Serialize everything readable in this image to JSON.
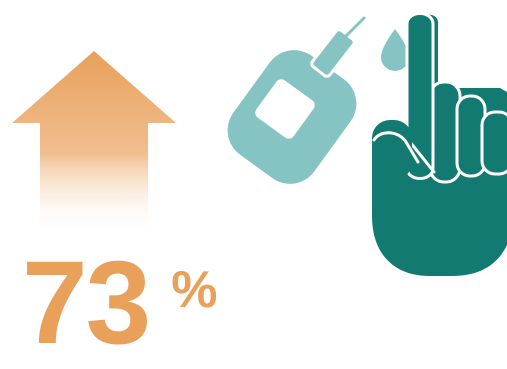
{
  "stat": {
    "value": "73",
    "unit": "%"
  },
  "colors": {
    "accent_orange": "#e8a05a",
    "meter_teal": "#86c4c3",
    "hand_green": "#127a70",
    "background": "#ffffff"
  },
  "icons": {
    "arrow": "up-arrow-icon",
    "meter": "glucose-meter-icon",
    "test_strip": "test-strip-icon",
    "blood_drop": "blood-drop-icon",
    "hand": "pointing-hand-icon"
  }
}
